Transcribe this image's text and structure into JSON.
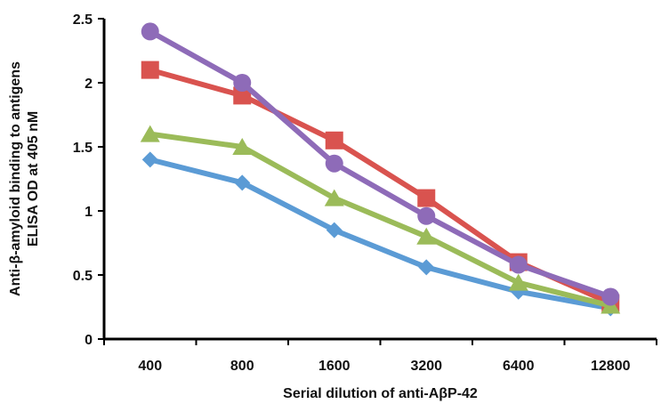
{
  "chart_data": {
    "type": "line",
    "categories": [
      "400",
      "800",
      "1600",
      "3200",
      "6400",
      "12800"
    ],
    "xlabel": "Serial dilution of anti-AβP-42",
    "ylabel_lines": [
      "Anti-β-amyloid binding to antigens",
      "ELISA OD at 405 nM"
    ],
    "ylim": [
      0,
      2.5
    ],
    "yticks": [
      "0",
      "0.5",
      "1",
      "1.5",
      "2",
      "2.5"
    ],
    "grid": false,
    "legend": "none",
    "series": [
      {
        "color": "#5B9BD5",
        "marker": "diamond",
        "values": [
          1.4,
          1.22,
          0.85,
          0.56,
          0.37,
          0.24
        ]
      },
      {
        "color": "#D9534F",
        "marker": "square",
        "values": [
          2.1,
          1.9,
          1.55,
          1.1,
          0.6,
          0.28
        ]
      },
      {
        "color": "#9BBB59",
        "marker": "triangle",
        "values": [
          1.6,
          1.5,
          1.1,
          0.8,
          0.44,
          0.26
        ]
      },
      {
        "color": "#8E6BB8",
        "marker": "circle",
        "values": [
          2.4,
          2.0,
          1.37,
          0.96,
          0.58,
          0.33
        ]
      }
    ]
  }
}
